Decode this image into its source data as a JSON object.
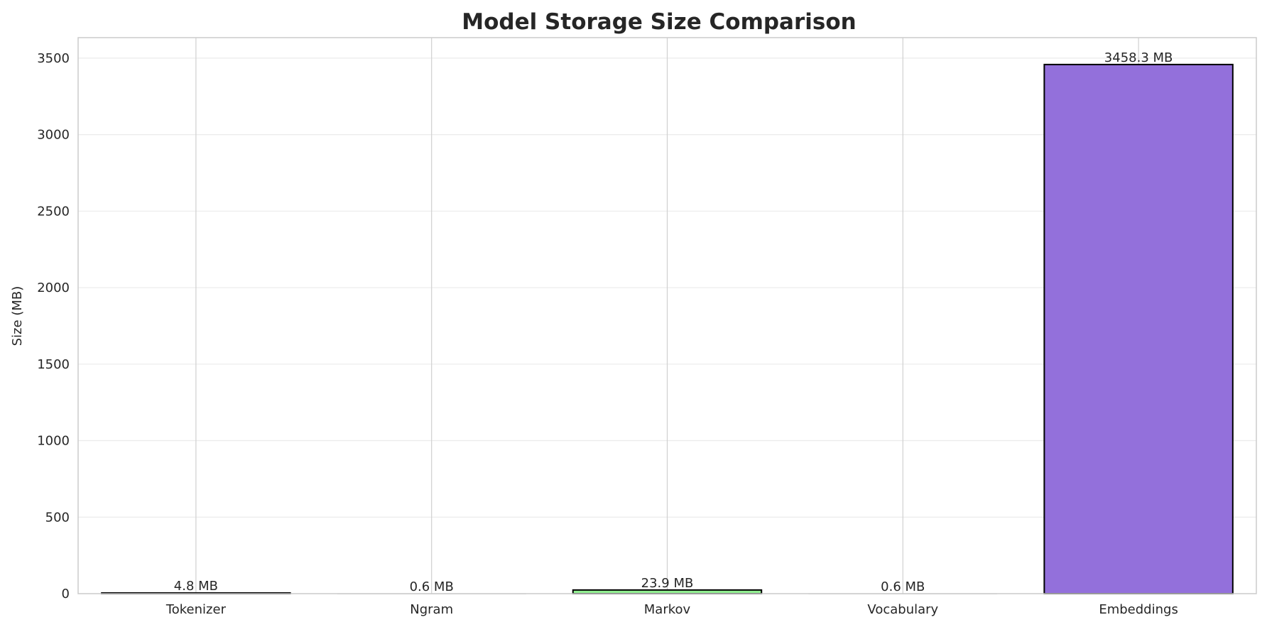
{
  "chart_data": {
    "type": "bar",
    "title": "Model Storage Size Comparison",
    "xlabel": "",
    "ylabel": "Size (MB)",
    "categories": [
      "Tokenizer",
      "Ngram",
      "Markov",
      "Vocabulary",
      "Embeddings"
    ],
    "values": [
      4.8,
      0.6,
      23.9,
      0.6,
      3458.3
    ],
    "data_labels": [
      "4.8 MB",
      "0.6 MB",
      "23.9 MB",
      "0.6 MB",
      "3458.3 MB"
    ],
    "colors": [
      "#4682b4",
      "#ff7f50",
      "#90ee90",
      "#f0e68c",
      "#9370db"
    ],
    "ylim": [
      0,
      3634
    ],
    "yticks": [
      0,
      500,
      1000,
      1500,
      2000,
      2500,
      3000,
      3500
    ],
    "grid": true,
    "legend": "none"
  }
}
